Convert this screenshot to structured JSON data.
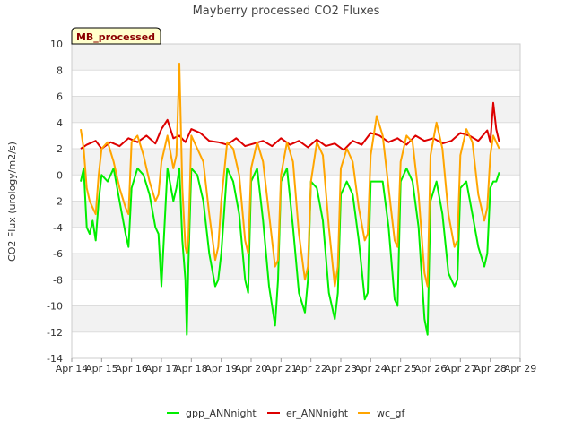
{
  "chart_data": {
    "type": "line",
    "title": "Mayberry processed CO2 Fluxes",
    "ylabel": "CO2 Flux (urology/m2/s)",
    "xlabel": "",
    "badge": "MB_processed",
    "ylim": [
      -14,
      10
    ],
    "yticks": [
      -14,
      -12,
      -10,
      -8,
      -6,
      -4,
      -2,
      0,
      2,
      4,
      6,
      8,
      10
    ],
    "xlim": [
      14,
      29
    ],
    "xtick_values": [
      14,
      15,
      16,
      17,
      18,
      19,
      20,
      21,
      22,
      23,
      24,
      25,
      26,
      27,
      28,
      29
    ],
    "xtick_labels": [
      "Apr 14",
      "Apr 15",
      "Apr 16",
      "Apr 17",
      "Apr 18",
      "Apr 19",
      "Apr 20",
      "Apr 21",
      "Apr 22",
      "Apr 23",
      "Apr 24",
      "Apr 25",
      "Apr 26",
      "Apr 27",
      "Apr 28",
      "Apr 29"
    ],
    "legend_position": "bottom-center",
    "grid": true,
    "series": [
      {
        "name": "gpp_ANNnight",
        "color": "#00ee00",
        "x": [
          14.3,
          14.4,
          14.5,
          14.6,
          14.7,
          14.8,
          14.9,
          15.0,
          15.2,
          15.4,
          15.6,
          15.8,
          15.9,
          16.0,
          16.2,
          16.4,
          16.6,
          16.8,
          16.9,
          17.0,
          17.2,
          17.4,
          17.5,
          17.6,
          17.7,
          17.8,
          17.85,
          17.9,
          18.0,
          18.2,
          18.4,
          18.6,
          18.8,
          18.9,
          19.0,
          19.2,
          19.4,
          19.6,
          19.8,
          19.9,
          20.0,
          20.2,
          20.4,
          20.6,
          20.8,
          20.9,
          21.0,
          21.2,
          21.4,
          21.6,
          21.8,
          21.9,
          22.0,
          22.2,
          22.4,
          22.6,
          22.8,
          22.9,
          23.0,
          23.2,
          23.4,
          23.6,
          23.8,
          23.9,
          24.0,
          24.2,
          24.4,
          24.6,
          24.8,
          24.9,
          25.0,
          25.2,
          25.4,
          25.6,
          25.8,
          25.9,
          26.0,
          26.2,
          26.4,
          26.6,
          26.8,
          26.9,
          27.0,
          27.2,
          27.4,
          27.6,
          27.8,
          27.9,
          28.0,
          28.1,
          28.2,
          28.3
        ],
        "y": [
          -0.5,
          0.5,
          -4.0,
          -4.5,
          -3.5,
          -5.0,
          -2.0,
          0.0,
          -0.5,
          0.5,
          -2.0,
          -4.5,
          -5.5,
          -1.0,
          0.5,
          0.0,
          -1.5,
          -4.0,
          -4.5,
          -8.5,
          0.5,
          -2.0,
          -1.0,
          0.5,
          -5.0,
          -8.0,
          -12.2,
          -7.0,
          0.5,
          0.0,
          -2.0,
          -6.0,
          -8.5,
          -8.0,
          -6.0,
          0.5,
          -0.5,
          -3.0,
          -8.0,
          -9.0,
          -0.5,
          0.5,
          -3.5,
          -8.5,
          -11.5,
          -8.0,
          -0.5,
          0.5,
          -4.0,
          -9.0,
          -10.5,
          -8.0,
          -0.5,
          -1.0,
          -3.5,
          -9.0,
          -11.0,
          -9.0,
          -1.5,
          -0.5,
          -1.5,
          -5.0,
          -9.5,
          -9.0,
          -0.5,
          -0.5,
          -0.5,
          -4.0,
          -9.5,
          -10.0,
          -0.5,
          0.5,
          -0.5,
          -4.0,
          -11.0,
          -12.2,
          -2.0,
          -0.5,
          -3.0,
          -7.5,
          -8.5,
          -8.0,
          -1.0,
          -0.5,
          -3.0,
          -5.5,
          -7.0,
          -6.0,
          -1.0,
          -0.5,
          -0.5,
          0.2
        ]
      },
      {
        "name": "er_ANNnight",
        "color": "#dd0000",
        "x": [
          14.3,
          14.5,
          14.8,
          15.0,
          15.3,
          15.6,
          15.9,
          16.2,
          16.5,
          16.8,
          17.0,
          17.2,
          17.4,
          17.6,
          17.8,
          18.0,
          18.3,
          18.6,
          18.9,
          19.2,
          19.5,
          19.8,
          20.1,
          20.4,
          20.7,
          21.0,
          21.3,
          21.6,
          21.9,
          22.2,
          22.5,
          22.8,
          23.1,
          23.4,
          23.7,
          24.0,
          24.3,
          24.6,
          24.9,
          25.2,
          25.5,
          25.8,
          26.1,
          26.4,
          26.7,
          27.0,
          27.3,
          27.6,
          27.9,
          28.0,
          28.1,
          28.2,
          28.3
        ],
        "y": [
          2.0,
          2.3,
          2.6,
          2.0,
          2.5,
          2.2,
          2.8,
          2.5,
          3.0,
          2.4,
          3.5,
          4.2,
          2.8,
          3.0,
          2.5,
          3.5,
          3.2,
          2.6,
          2.5,
          2.3,
          2.8,
          2.2,
          2.4,
          2.6,
          2.2,
          2.8,
          2.3,
          2.6,
          2.1,
          2.7,
          2.2,
          2.4,
          1.9,
          2.6,
          2.3,
          3.2,
          3.0,
          2.5,
          2.8,
          2.3,
          3.0,
          2.6,
          2.8,
          2.4,
          2.6,
          3.2,
          3.0,
          2.6,
          3.4,
          2.5,
          5.5,
          3.5,
          2.5
        ]
      },
      {
        "name": "wc_gf",
        "color": "#ffa500",
        "x": [
          14.3,
          14.4,
          14.5,
          14.6,
          14.7,
          14.8,
          14.9,
          15.0,
          15.2,
          15.4,
          15.6,
          15.8,
          15.9,
          16.0,
          16.2,
          16.4,
          16.6,
          16.8,
          16.9,
          17.0,
          17.2,
          17.4,
          17.5,
          17.6,
          17.7,
          17.8,
          17.85,
          17.9,
          18.0,
          18.2,
          18.4,
          18.6,
          18.8,
          18.9,
          19.0,
          19.2,
          19.4,
          19.6,
          19.8,
          19.9,
          20.0,
          20.2,
          20.4,
          20.6,
          20.8,
          20.9,
          21.0,
          21.2,
          21.4,
          21.6,
          21.8,
          21.9,
          22.0,
          22.2,
          22.4,
          22.6,
          22.8,
          22.9,
          23.0,
          23.2,
          23.4,
          23.6,
          23.8,
          23.9,
          24.0,
          24.2,
          24.4,
          24.6,
          24.8,
          24.9,
          25.0,
          25.2,
          25.4,
          25.6,
          25.8,
          25.9,
          26.0,
          26.2,
          26.4,
          26.6,
          26.8,
          26.9,
          27.0,
          27.2,
          27.4,
          27.6,
          27.8,
          27.9,
          28.0,
          28.1,
          28.2,
          28.3
        ],
        "y": [
          3.5,
          2.0,
          -1.0,
          -2.0,
          -2.5,
          -3.0,
          0.0,
          2.0,
          2.5,
          1.0,
          -1.0,
          -2.5,
          -3.0,
          2.5,
          3.0,
          1.5,
          -0.5,
          -2.0,
          -1.5,
          1.0,
          3.0,
          0.5,
          1.5,
          8.5,
          -1.0,
          -5.5,
          -6.0,
          -5.0,
          3.0,
          2.0,
          1.0,
          -3.0,
          -6.5,
          -5.5,
          -2.0,
          2.5,
          2.0,
          0.0,
          -5.0,
          -6.0,
          0.5,
          2.5,
          1.0,
          -3.0,
          -7.0,
          -6.5,
          0.0,
          2.5,
          1.0,
          -4.5,
          -8.0,
          -7.0,
          -0.5,
          2.5,
          1.5,
          -4.0,
          -8.5,
          -7.0,
          0.5,
          2.0,
          1.0,
          -2.5,
          -5.0,
          -4.5,
          1.5,
          4.5,
          3.0,
          -1.0,
          -5.0,
          -5.5,
          1.0,
          3.0,
          2.5,
          -1.5,
          -7.5,
          -8.5,
          1.5,
          4.0,
          2.0,
          -3.0,
          -5.5,
          -5.0,
          1.5,
          3.5,
          2.5,
          -1.5,
          -3.5,
          -2.5,
          1.5,
          3.0,
          2.5,
          2.0
        ]
      }
    ]
  }
}
